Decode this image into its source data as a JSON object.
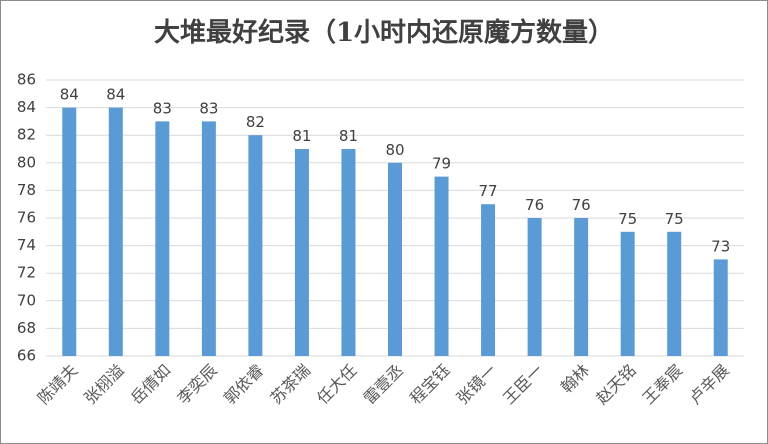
{
  "chart_data": {
    "type": "bar",
    "title": "大堆最好纪录（1小时内还原魔方数量）",
    "categories": [
      "陈靖夫",
      "张栩溢",
      "岳倩如",
      "李奕辰",
      "郭依睿",
      "苏茶瑞",
      "任大任",
      "雷壹丞",
      "程宝钰",
      "张镜一",
      "王臣一",
      "翰林",
      "赵天铭",
      "王奉宸",
      "卢辛展"
    ],
    "values": [
      84,
      84,
      83,
      83,
      82,
      81,
      81,
      80,
      79,
      77,
      76,
      76,
      75,
      75,
      73
    ],
    "color": "#5b9bd5",
    "ylim": [
      66,
      86
    ],
    "yticks": [
      66,
      68,
      70,
      72,
      74,
      76,
      78,
      80,
      82,
      84,
      86
    ],
    "grid": true
  }
}
